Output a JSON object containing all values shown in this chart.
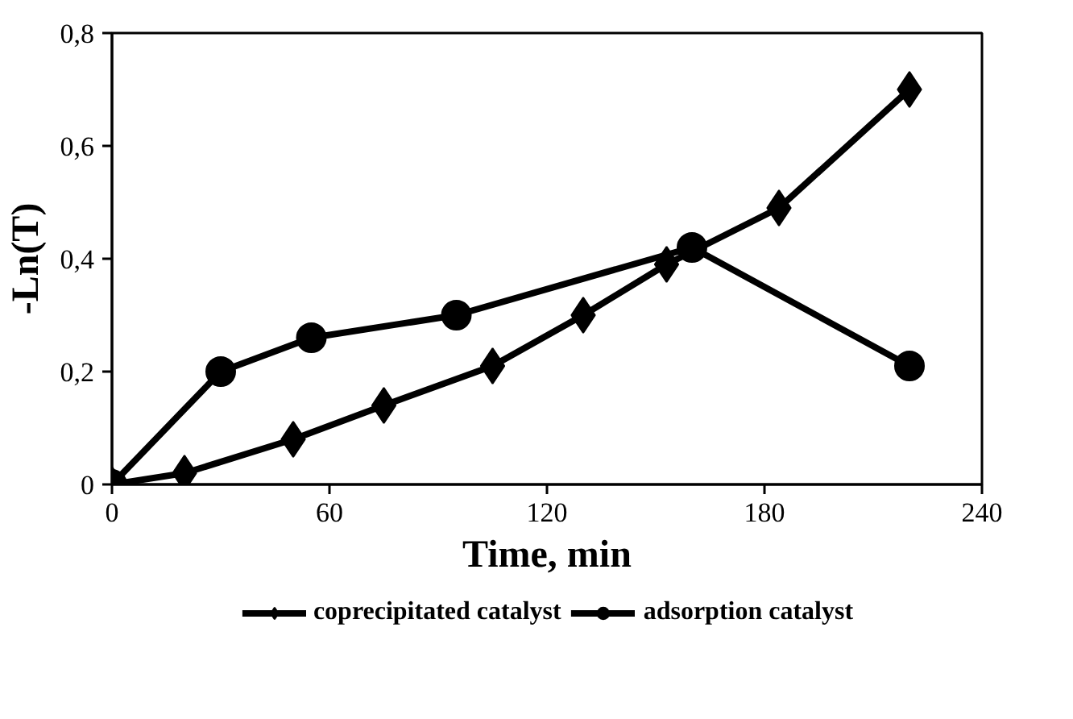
{
  "chart_data": {
    "type": "line",
    "xlabel": "Time, min",
    "ylabel": "-Ln(T)",
    "xlim": [
      0,
      240
    ],
    "xticks": [
      0,
      60,
      120,
      180,
      240
    ],
    "ylim": [
      0,
      0.8
    ],
    "yticks": [
      0,
      {
        "value": 0.2,
        "label": "0,2"
      },
      {
        "value": 0.4,
        "label": "0,4"
      },
      {
        "value": 0.6,
        "label": "0,6"
      },
      {
        "value": 0.8,
        "label": "0,8"
      }
    ],
    "grid": false,
    "legend": "bottom",
    "series": [
      {
        "name": "coprecipitated catalyst",
        "color": "#000000",
        "marker": "diamond",
        "x": [
          0,
          20,
          50,
          75,
          105,
          130,
          153,
          184,
          220
        ],
        "values": [
          0,
          0.02,
          0.08,
          0.14,
          0.21,
          0.3,
          0.39,
          0.49,
          0.7
        ]
      },
      {
        "name": "adsorption catalyst",
        "color": "#000000",
        "marker": "circle",
        "x": [
          0,
          30,
          55,
          95,
          160,
          220
        ],
        "values": [
          0,
          0.2,
          0.26,
          0.3,
          0.42,
          0.21
        ]
      }
    ]
  }
}
